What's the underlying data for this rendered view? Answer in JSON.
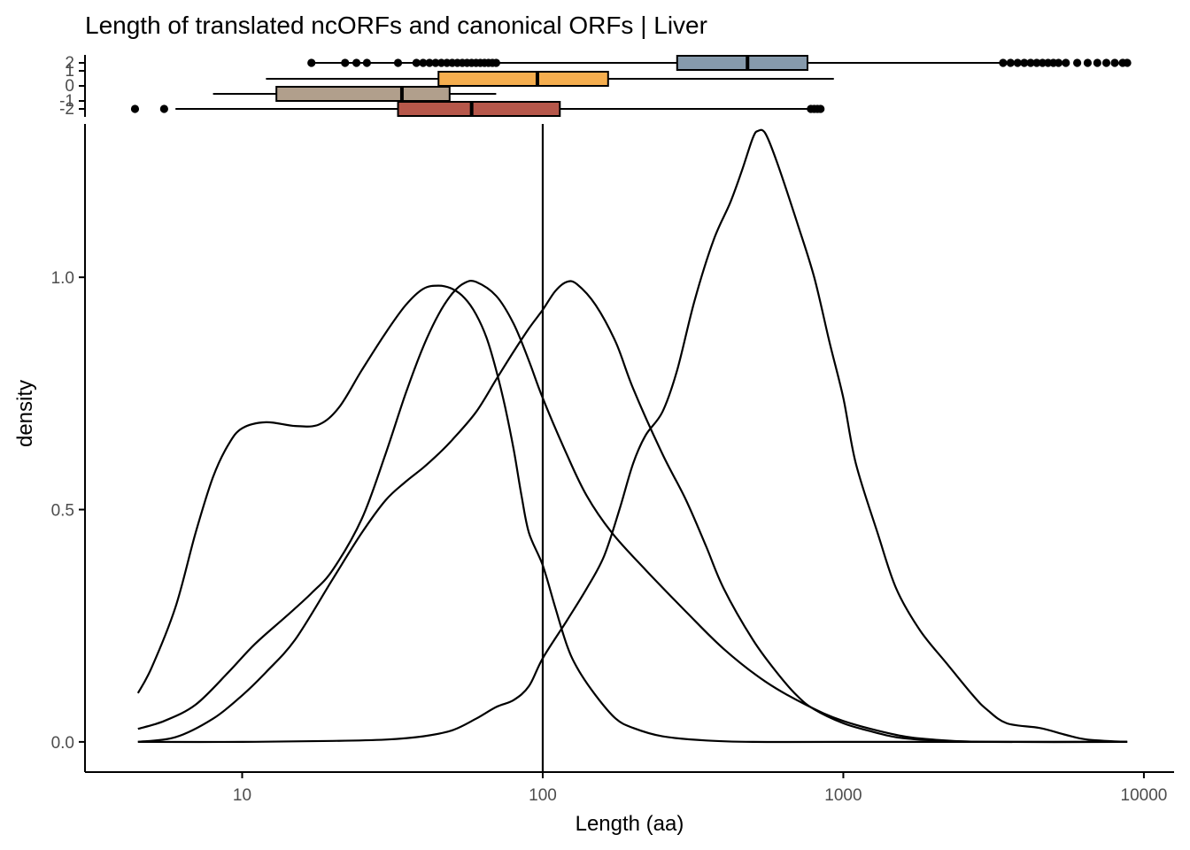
{
  "chart_data": {
    "type": "density",
    "title": "Length of translated ncORFs and canonical ORFs | Liver",
    "xlabel": "Length (aa)",
    "ylabel": "density",
    "x_scale": "log10",
    "xlim": [
      3,
      12600
    ],
    "ylim": [
      -0.065,
      1.33
    ],
    "x_ticks": [
      10,
      100,
      1000,
      10000
    ],
    "x_tick_labels": [
      "10",
      "100",
      "1000",
      "10000"
    ],
    "y_ticks": [
      0.0,
      0.5,
      1.0
    ],
    "y_tick_labels": [
      "0.0",
      "0.5",
      "1.0"
    ],
    "vline_x": 100,
    "grid": false,
    "legend": "none",
    "density_series": [
      {
        "points": [
          [
            4.5,
            0.105
          ],
          [
            5,
            0.16
          ],
          [
            6,
            0.29
          ],
          [
            7,
            0.45
          ],
          [
            8,
            0.57
          ],
          [
            9,
            0.64
          ],
          [
            10,
            0.675
          ],
          [
            12,
            0.688
          ],
          [
            15,
            0.68
          ],
          [
            18,
            0.683
          ],
          [
            21,
            0.72
          ],
          [
            25,
            0.8
          ],
          [
            30,
            0.88
          ],
          [
            35,
            0.94
          ],
          [
            40,
            0.975
          ],
          [
            45,
            0.982
          ],
          [
            50,
            0.975
          ],
          [
            55,
            0.955
          ],
          [
            60,
            0.92
          ],
          [
            65,
            0.87
          ],
          [
            70,
            0.8
          ],
          [
            75,
            0.72
          ],
          [
            80,
            0.63
          ],
          [
            85,
            0.53
          ],
          [
            90,
            0.45
          ],
          [
            100,
            0.38
          ],
          [
            110,
            0.29
          ],
          [
            120,
            0.21
          ],
          [
            130,
            0.16
          ],
          [
            150,
            0.1
          ],
          [
            175,
            0.05
          ],
          [
            200,
            0.03
          ],
          [
            250,
            0.012
          ],
          [
            350,
            0.003
          ],
          [
            500,
            0.0
          ],
          [
            1000,
            0.0
          ],
          [
            8800,
            0.0
          ]
        ]
      },
      {
        "points": [
          [
            4.5,
            0.028
          ],
          [
            5.5,
            0.045
          ],
          [
            7,
            0.08
          ],
          [
            9,
            0.15
          ],
          [
            11,
            0.21
          ],
          [
            14,
            0.27
          ],
          [
            17,
            0.32
          ],
          [
            20,
            0.37
          ],
          [
            25,
            0.48
          ],
          [
            30,
            0.62
          ],
          [
            35,
            0.75
          ],
          [
            40,
            0.85
          ],
          [
            45,
            0.92
          ],
          [
            50,
            0.965
          ],
          [
            55,
            0.988
          ],
          [
            60,
            0.99
          ],
          [
            70,
            0.96
          ],
          [
            80,
            0.9
          ],
          [
            90,
            0.82
          ],
          [
            100,
            0.74
          ],
          [
            120,
            0.62
          ],
          [
            140,
            0.53
          ],
          [
            170,
            0.45
          ],
          [
            220,
            0.37
          ],
          [
            300,
            0.28
          ],
          [
            400,
            0.2
          ],
          [
            550,
            0.13
          ],
          [
            750,
            0.08
          ],
          [
            1000,
            0.045
          ],
          [
            1500,
            0.015
          ],
          [
            2000,
            0.005
          ],
          [
            3000,
            0.0
          ],
          [
            8800,
            0.0
          ]
        ]
      },
      {
        "points": [
          [
            4.5,
            0.0
          ],
          [
            6,
            0.01
          ],
          [
            8,
            0.05
          ],
          [
            10,
            0.1
          ],
          [
            12,
            0.15
          ],
          [
            15,
            0.22
          ],
          [
            20,
            0.35
          ],
          [
            25,
            0.45
          ],
          [
            30,
            0.52
          ],
          [
            35,
            0.56
          ],
          [
            40,
            0.59
          ],
          [
            45,
            0.62
          ],
          [
            50,
            0.65
          ],
          [
            60,
            0.71
          ],
          [
            70,
            0.78
          ],
          [
            80,
            0.84
          ],
          [
            90,
            0.89
          ],
          [
            100,
            0.93
          ],
          [
            110,
            0.97
          ],
          [
            120,
            0.99
          ],
          [
            130,
            0.985
          ],
          [
            150,
            0.94
          ],
          [
            175,
            0.86
          ],
          [
            200,
            0.76
          ],
          [
            250,
            0.62
          ],
          [
            300,
            0.52
          ],
          [
            350,
            0.42
          ],
          [
            400,
            0.33
          ],
          [
            500,
            0.22
          ],
          [
            600,
            0.15
          ],
          [
            700,
            0.1
          ],
          [
            800,
            0.07
          ],
          [
            1000,
            0.04
          ],
          [
            1200,
            0.025
          ],
          [
            1500,
            0.01
          ],
          [
            2000,
            0.003
          ],
          [
            3000,
            0.0
          ],
          [
            8800,
            0.0
          ]
        ]
      },
      {
        "points": [
          [
            4.5,
            0.0
          ],
          [
            10,
            0.0
          ],
          [
            20,
            0.002
          ],
          [
            30,
            0.005
          ],
          [
            40,
            0.012
          ],
          [
            50,
            0.025
          ],
          [
            60,
            0.05
          ],
          [
            70,
            0.075
          ],
          [
            80,
            0.09
          ],
          [
            90,
            0.12
          ],
          [
            100,
            0.18
          ],
          [
            120,
            0.26
          ],
          [
            140,
            0.33
          ],
          [
            160,
            0.4
          ],
          [
            180,
            0.5
          ],
          [
            200,
            0.6
          ],
          [
            220,
            0.66
          ],
          [
            250,
            0.71
          ],
          [
            280,
            0.8
          ],
          [
            320,
            0.95
          ],
          [
            370,
            1.08
          ],
          [
            420,
            1.16
          ],
          [
            460,
            1.23
          ],
          [
            500,
            1.3
          ],
          [
            520,
            1.315
          ],
          [
            550,
            1.31
          ],
          [
            600,
            1.25
          ],
          [
            700,
            1.12
          ],
          [
            800,
            1.0
          ],
          [
            900,
            0.86
          ],
          [
            1000,
            0.74
          ],
          [
            1100,
            0.6
          ],
          [
            1300,
            0.45
          ],
          [
            1500,
            0.33
          ],
          [
            1800,
            0.24
          ],
          [
            2200,
            0.17
          ],
          [
            2700,
            0.1
          ],
          [
            3000,
            0.07
          ],
          [
            3500,
            0.04
          ],
          [
            4500,
            0.03
          ],
          [
            5500,
            0.015
          ],
          [
            6500,
            0.005
          ],
          [
            8800,
            0.0
          ]
        ]
      }
    ],
    "boxplot_y_ticks": [
      "2",
      "1",
      "0",
      "-1",
      "-2"
    ],
    "boxplots": [
      {
        "position": 2,
        "fill": "#869aac",
        "whisker_low": 17,
        "q1": 280,
        "median": 480,
        "q3": 760,
        "whisker_high": 3400,
        "outliers": [
          17,
          22,
          24,
          26,
          33,
          38,
          40,
          42,
          44,
          46,
          48,
          50,
          52,
          54,
          56,
          58,
          60,
          62,
          64,
          66,
          68,
          70,
          3400,
          3600,
          3800,
          4000,
          4200,
          4400,
          4600,
          4800,
          5000,
          5200,
          5500,
          6000,
          6500,
          7000,
          7500,
          8000,
          8500,
          8800
        ]
      },
      {
        "position": 1,
        "fill": "#f5ae4f",
        "whisker_low": 12,
        "q1": 45,
        "median": 96,
        "q3": 165,
        "whisker_high": 930,
        "outliers": []
      },
      {
        "position": -1,
        "fill": "#b19f8c",
        "whisker_low": 8,
        "q1": 13,
        "median": 34,
        "q3": 49,
        "whisker_high": 70,
        "outliers": []
      },
      {
        "position": -2,
        "fill": "#b6574a",
        "whisker_low": 6,
        "q1": 33,
        "median": 58,
        "q3": 114,
        "whisker_high": 780,
        "outliers": [
          4.4,
          5.5,
          780,
          800,
          820,
          840
        ]
      }
    ]
  }
}
